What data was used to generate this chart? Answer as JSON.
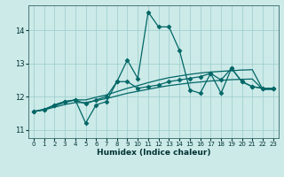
{
  "xlabel": "Humidex (Indice chaleur)",
  "bg_color": "#cceae8",
  "grid_color": "#99cccc",
  "line_color": "#006666",
  "ylim": [
    10.75,
    14.75
  ],
  "xlim": [
    -0.5,
    23.5
  ],
  "yticks": [
    11,
    12,
    13,
    14
  ],
  "xticks": [
    0,
    1,
    2,
    3,
    4,
    5,
    6,
    7,
    8,
    9,
    10,
    11,
    12,
    13,
    14,
    15,
    16,
    17,
    18,
    19,
    20,
    21,
    22,
    23
  ],
  "series": [
    {
      "x": [
        0,
        1,
        2,
        3,
        4,
        5,
        6,
        7,
        8,
        9,
        10,
        11,
        12,
        13,
        14,
        15,
        16,
        17,
        18,
        19,
        20,
        21,
        22,
        23
      ],
      "y": [
        11.55,
        11.6,
        11.75,
        11.85,
        11.9,
        11.2,
        11.75,
        11.85,
        12.45,
        13.1,
        12.55,
        14.55,
        14.1,
        14.1,
        13.4,
        12.2,
        12.1,
        12.7,
        12.1,
        12.85,
        12.45,
        12.3,
        12.25,
        12.25
      ],
      "marker": "D",
      "markersize": 2.5,
      "linewidth": 0.9
    },
    {
      "x": [
        0,
        1,
        2,
        3,
        4,
        5,
        6,
        7,
        8,
        9,
        10,
        11,
        12,
        13,
        14,
        15,
        16,
        17,
        18,
        19,
        20,
        21,
        22,
        23
      ],
      "y": [
        11.55,
        11.62,
        11.72,
        11.82,
        11.9,
        11.9,
        11.98,
        12.05,
        12.15,
        12.25,
        12.33,
        12.42,
        12.5,
        12.57,
        12.62,
        12.67,
        12.71,
        12.74,
        12.76,
        12.78,
        12.8,
        12.81,
        12.22,
        12.22
      ],
      "marker": null,
      "markersize": 0,
      "linewidth": 0.9
    },
    {
      "x": [
        0,
        1,
        2,
        3,
        4,
        5,
        6,
        7,
        8,
        9,
        10,
        11,
        12,
        13,
        14,
        15,
        16,
        17,
        18,
        19,
        20,
        21,
        22,
        23
      ],
      "y": [
        11.55,
        11.6,
        11.68,
        11.76,
        11.82,
        11.82,
        11.88,
        11.94,
        12.02,
        12.1,
        12.16,
        12.22,
        12.28,
        12.33,
        12.37,
        12.41,
        12.44,
        12.47,
        12.49,
        12.51,
        12.52,
        12.53,
        12.22,
        12.22
      ],
      "marker": null,
      "markersize": 0,
      "linewidth": 0.9
    },
    {
      "x": [
        0,
        1,
        2,
        3,
        4,
        5,
        6,
        7,
        8,
        9,
        10,
        11,
        12,
        13,
        14,
        15,
        16,
        17,
        18,
        19,
        20,
        21,
        22,
        23
      ],
      "y": [
        11.55,
        11.6,
        11.75,
        11.85,
        11.9,
        11.78,
        11.9,
        12.0,
        12.45,
        12.45,
        12.25,
        12.3,
        12.35,
        12.45,
        12.5,
        12.55,
        12.6,
        12.7,
        12.5,
        12.85,
        12.45,
        12.3,
        12.25,
        12.25
      ],
      "marker": "D",
      "markersize": 2.5,
      "linewidth": 0.9
    }
  ]
}
